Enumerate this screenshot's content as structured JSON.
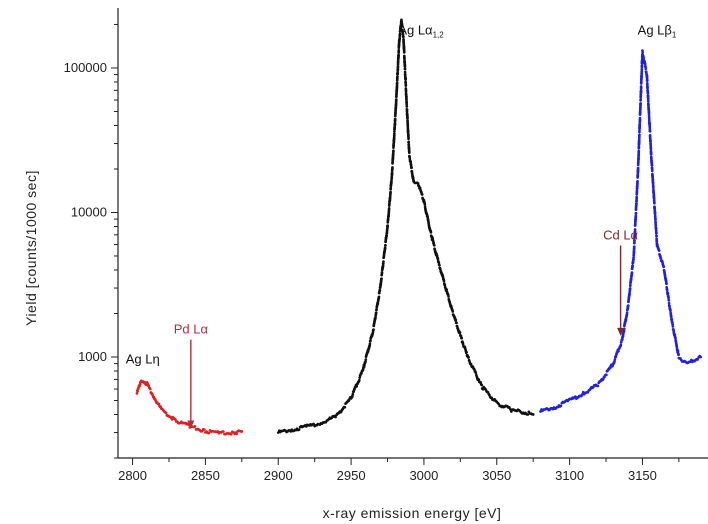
{
  "chart_data": {
    "type": "scatter",
    "scale": {
      "y": "log"
    },
    "xlabel": "x-ray emission energy [eV]",
    "ylabel": "Yield [counts/1000 sec]",
    "xlim": [
      2790,
      3195
    ],
    "ylim": [
      200,
      260000
    ],
    "x_ticks": [
      2800,
      2850,
      2900,
      2950,
      3000,
      3050,
      3100,
      3150
    ],
    "x_tick_labels": [
      "2800",
      "2850",
      "2900",
      "2950",
      "3000",
      "3050",
      "3100",
      "3150"
    ],
    "y_ticks": [
      1000,
      10000,
      100000
    ],
    "y_tick_labels": [
      "1000",
      "10000",
      "100000"
    ],
    "grid": false,
    "series": [
      {
        "color": "#e02020",
        "x": [
          2803,
          2806,
          2810,
          2815,
          2820,
          2830,
          2840,
          2850,
          2860,
          2870,
          2875
        ],
        "y": [
          560,
          700,
          650,
          520,
          430,
          360,
          330,
          305,
          300,
          300,
          305
        ]
      },
      {
        "color": "#111111",
        "x": [
          2900,
          2910,
          2920,
          2930,
          2940,
          2950,
          2958,
          2965,
          2970,
          2975,
          2978,
          2981,
          2983,
          2984.5,
          2986,
          2988,
          2990,
          2993,
          2996,
          3000,
          3005,
          3010,
          3020,
          3030,
          3040,
          3050,
          3060,
          3075
        ],
        "y": [
          300,
          315,
          330,
          350,
          390,
          520,
          800,
          1500,
          3000,
          8000,
          18000,
          60000,
          150000,
          215000,
          160000,
          60000,
          25000,
          16000,
          16000,
          12000,
          7000,
          4500,
          2000,
          1000,
          620,
          480,
          430,
          400
        ]
      },
      {
        "color": "#2020e0",
        "x": [
          3080,
          3090,
          3100,
          3110,
          3120,
          3130,
          3136,
          3140,
          3144,
          3147,
          3150,
          3153,
          3156,
          3160,
          3165,
          3170,
          3175,
          3180,
          3185,
          3190
        ],
        "y": [
          420,
          450,
          500,
          560,
          650,
          900,
          1300,
          2200,
          5000,
          20000,
          130000,
          90000,
          25000,
          6000,
          4000,
          1800,
          1000,
          900,
          950,
          1000
        ]
      }
    ],
    "annotations": [
      {
        "text": "Ag Lη",
        "x": 2807,
        "y": 900,
        "color": "#111111"
      },
      {
        "text": "Pd Lα",
        "x": 2840,
        "y": 1450,
        "color": "#b03040",
        "arrow_to": [
          2840,
          320
        ]
      },
      {
        "text": "Ag Lα",
        "subscript": "1,2",
        "x": 2998,
        "y": 170000,
        "color": "#111111"
      },
      {
        "text": "Cd Lα",
        "x": 3135,
        "y": 6500,
        "color": "#7a2a2a",
        "arrow_to": [
          3135,
          1400
        ]
      },
      {
        "text": "Ag Lβ",
        "subscript": "1",
        "x": 3160,
        "y": 170000,
        "color": "#111111"
      }
    ]
  }
}
